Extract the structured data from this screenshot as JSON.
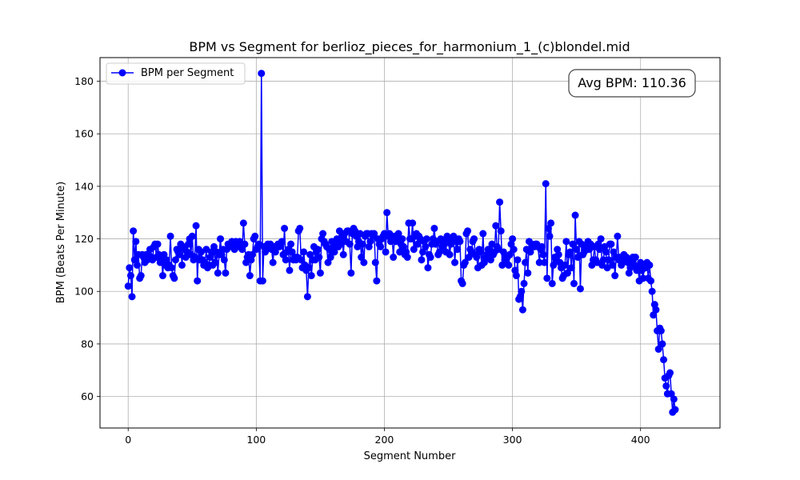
{
  "chart_data": {
    "type": "line",
    "title": "BPM vs Segment for berlioz_pieces_for_harmonium_1_(c)blondel.mid",
    "xlabel": "Segment Number",
    "ylabel": "BPM (Beats Per Minute)",
    "xlim": [
      -22,
      462
    ],
    "ylim": [
      48,
      189
    ],
    "xticks": [
      0,
      100,
      200,
      300,
      400
    ],
    "yticks": [
      60,
      80,
      100,
      120,
      140,
      160,
      180
    ],
    "grid": true,
    "legend": {
      "placement": "top-left",
      "entries": [
        "BPM per Segment"
      ]
    },
    "annotation": {
      "text": "Avg BPM: 110.36",
      "placement": "top-right"
    },
    "series": [
      {
        "name": "BPM per Segment",
        "color": "#0000ff",
        "marker": "circle",
        "y": [
          102,
          109,
          106,
          98,
          123,
          112,
          119,
          110,
          114,
          105,
          106,
          114,
          113,
          111,
          114,
          112,
          114,
          116,
          113,
          112,
          117,
          118,
          113,
          118,
          114,
          111,
          113,
          106,
          114,
          110,
          112,
          109,
          110,
          121,
          109,
          106,
          105,
          112,
          116,
          115,
          114,
          118,
          110,
          117,
          116,
          113,
          115,
          118,
          120,
          114,
          121,
          112,
          113,
          125,
          104,
          116,
          112,
          115,
          112,
          110,
          111,
          116,
          109,
          110,
          113,
          115,
          110,
          117,
          111,
          115,
          107,
          114,
          120,
          114,
          116,
          112,
          107,
          116,
          118,
          117,
          118,
          119,
          117,
          116,
          119,
          117,
          118,
          119,
          117,
          116,
          126,
          118,
          111,
          113,
          114,
          106,
          112,
          114,
          120,
          121,
          116,
          117,
          118,
          104,
          183,
          104,
          117,
          115,
          116,
          118,
          117,
          118,
          116,
          111,
          117,
          115,
          117,
          118,
          117,
          118,
          119,
          114,
          124,
          112,
          115,
          116,
          108,
          118,
          115,
          112,
          113,
          112,
          113,
          123,
          124,
          112,
          109,
          115,
          110,
          108,
          98,
          109,
          114,
          106,
          112,
          117,
          112,
          115,
          116,
          113,
          107,
          120,
          122,
          119,
          118,
          117,
          111,
          116,
          113,
          119,
          117,
          115,
          119,
          120,
          117,
          123,
          118,
          121,
          114,
          122,
          119,
          123,
          123,
          118,
          107,
          122,
          124,
          123,
          121,
          117,
          119,
          122,
          113,
          118,
          111,
          121,
          122,
          122,
          117,
          119,
          122,
          121,
          122,
          111,
          104,
          120,
          118,
          117,
          120,
          121,
          122,
          115,
          130,
          121,
          122,
          119,
          121,
          113,
          121,
          119,
          121,
          122,
          115,
          118,
          120,
          117,
          114,
          115,
          113,
          126,
          120,
          120,
          126,
          116,
          121,
          122,
          118,
          121,
          120,
          112,
          115,
          119,
          117,
          120,
          109,
          114,
          113,
          118,
          120,
          124,
          118,
          119,
          114,
          115,
          120,
          117,
          119,
          118,
          115,
          121,
          120,
          114,
          118,
          120,
          121,
          111,
          119,
          116,
          120,
          119,
          104,
          103,
          110,
          111,
          122,
          123,
          113,
          116,
          115,
          119,
          120,
          114,
          113,
          109,
          116,
          115,
          110,
          122,
          111,
          113,
          114,
          116,
          115,
          112,
          118,
          114,
          115,
          125,
          117,
          116,
          134,
          123,
          110,
          115,
          112,
          111,
          113,
          110,
          114,
          118,
          120,
          116,
          108,
          106,
          112,
          97,
          98,
          100,
          93,
          103,
          111,
          116,
          107,
          119,
          115,
          118,
          117,
          117,
          118,
          118,
          117,
          111,
          116,
          117,
          114,
          111,
          141,
          105,
          124,
          121,
          126,
          103,
          110,
          113,
          112,
          116,
          114,
          111,
          109,
          105,
          106,
          110,
          119,
          107,
          114,
          115,
          109,
          118,
          103,
          129,
          116,
          113,
          119,
          101,
          118,
          114,
          115,
          117,
          116,
          119,
          116,
          118,
          110,
          112,
          117,
          112,
          111,
          118,
          116,
          120,
          110,
          112,
          117,
          115,
          109,
          112,
          118,
          118,
          110,
          115,
          106,
          113,
          121,
          112,
          113,
          110,
          111,
          114,
          112,
          113,
          111,
          107,
          109,
          112,
          113,
          110,
          113,
          108,
          109,
          104,
          111,
          108,
          105,
          110,
          109,
          111,
          105,
          110,
          104,
          100,
          91,
          95,
          93,
          85,
          78,
          86,
          85,
          80,
          74,
          67,
          64,
          61,
          68,
          69,
          61,
          54,
          59,
          55
        ]
      }
    ]
  }
}
